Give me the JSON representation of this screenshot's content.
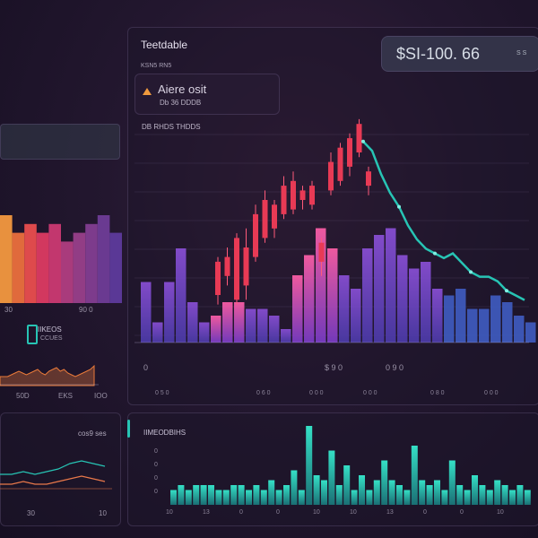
{
  "app": {
    "title": "Teetdable",
    "subtitle": "KSN5 RN5",
    "price": "$SI-100. 66",
    "price_suffix": "S S"
  },
  "alert": {
    "title": "Aiere osit",
    "subtitle": "Db 36 DDDB"
  },
  "main_chart": {
    "header": "DB  RHDS  THDDS",
    "bottom_labels": [
      "0",
      "$ 9 0",
      "0 9 0"
    ],
    "tick_labels": [
      "0  5 0",
      "0  6 0",
      "0  0 0",
      "0  0 0",
      "0  8 0",
      "0  0 0"
    ]
  },
  "left": {
    "gradient_label_left": "30",
    "gradient_label_right": "90 0",
    "widget_title": "IIKEOS",
    "widget_subtitle": "CCUES",
    "mini_labels": [
      "50D",
      "EKS",
      "IOO"
    ],
    "bottom_value": "cos9 ses",
    "bottom_labels": [
      "30",
      "10"
    ]
  },
  "bottom_panel": {
    "title": "IIMEODBIHS",
    "y_labels": [
      "0",
      "0",
      "0",
      "0"
    ],
    "x_labels": [
      "10",
      "13",
      "0",
      "0",
      "10",
      "10",
      "13",
      "0",
      "0",
      "10"
    ]
  },
  "chart_data": {
    "type": "bar",
    "categories": [],
    "values": [],
    "purple_bars": [
      9,
      3,
      9,
      14,
      6,
      3,
      4,
      6,
      6,
      5,
      5,
      4,
      2,
      10,
      13,
      17,
      14,
      10,
      8,
      14,
      16,
      17,
      13,
      11,
      12,
      8,
      7,
      8,
      5,
      5,
      7,
      6,
      4,
      3
    ],
    "candles": [
      {
        "o": 10,
        "c": 17,
        "h": 18,
        "l": 8
      },
      {
        "o": 14,
        "c": 18,
        "h": 20,
        "l": 12
      },
      {
        "o": 9,
        "c": 22,
        "h": 23,
        "l": 8
      },
      {
        "o": 12,
        "c": 20,
        "h": 24,
        "l": 9
      },
      {
        "o": 18,
        "c": 27,
        "h": 29,
        "l": 17
      },
      {
        "o": 22,
        "c": 30,
        "h": 32,
        "l": 21
      },
      {
        "o": 24,
        "c": 29,
        "h": 30,
        "l": 22
      },
      {
        "o": 27,
        "c": 33,
        "h": 35,
        "l": 26
      },
      {
        "o": 28,
        "c": 34,
        "h": 36,
        "l": 27
      },
      {
        "o": 30,
        "c": 32,
        "h": 33,
        "l": 28
      },
      {
        "o": 29,
        "c": 33,
        "h": 34,
        "l": 28
      },
      {
        "o": 21,
        "c": 17,
        "h": 22,
        "l": 14
      },
      {
        "o": 32,
        "c": 38,
        "h": 40,
        "l": 31
      },
      {
        "o": 34,
        "c": 41,
        "h": 42,
        "l": 33
      },
      {
        "o": 37,
        "c": 43,
        "h": 44,
        "l": 35
      },
      {
        "o": 40,
        "c": 46,
        "h": 47,
        "l": 39
      },
      {
        "o": 36,
        "c": 33,
        "h": 37,
        "l": 31
      }
    ],
    "teal_line": [
      46,
      44,
      39,
      35,
      32,
      28,
      25,
      23,
      22,
      21,
      22,
      20,
      18,
      17,
      17,
      16,
      14,
      13,
      12
    ],
    "left_gradient_bars": [
      10,
      8,
      9,
      8,
      9,
      7,
      8,
      9,
      10,
      8
    ],
    "left_gradient_colors": [
      "#e8913e",
      "#e06a3c",
      "#de4a4c",
      "#d2385f",
      "#c2376e",
      "#a93b7c",
      "#923d85",
      "#7d3b8c",
      "#6a3a91",
      "#5a3896"
    ],
    "teal_bars": [
      3,
      4,
      3,
      4,
      4,
      4,
      3,
      3,
      4,
      4,
      3,
      4,
      3,
      5,
      3,
      4,
      7,
      3,
      16,
      6,
      5,
      11,
      4,
      8,
      3,
      6,
      3,
      5,
      9,
      5,
      4,
      3,
      12,
      5,
      4,
      5,
      3,
      9,
      4,
      3,
      6,
      4,
      3,
      5,
      4,
      3,
      4,
      3
    ],
    "mini_line": [
      4,
      4,
      4,
      5,
      6,
      7,
      6,
      5,
      6,
      7,
      8,
      6,
      5,
      7,
      8,
      9,
      7,
      8,
      6,
      5,
      4,
      5,
      6,
      7,
      8,
      10
    ],
    "left_lines": [
      [
        2,
        2,
        3,
        2,
        3,
        4,
        6,
        7,
        6,
        5
      ],
      [
        1,
        1,
        2,
        1,
        1,
        2,
        3,
        4,
        3,
        2
      ]
    ]
  },
  "colors": {
    "purple_top": "#8a4fd6",
    "purple_bottom": "#4b3aa8",
    "blue": "#3f5bbf",
    "candle_red": "#e83a55",
    "candle_pink": "#ff5a7a",
    "teal": "#27c4b4",
    "teal_dark": "#177f7a"
  }
}
